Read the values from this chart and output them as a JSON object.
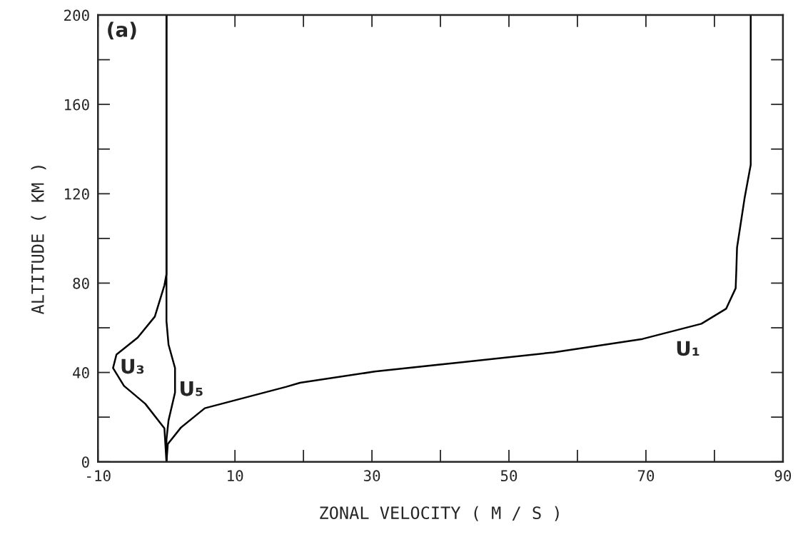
{
  "chart_data": {
    "type": "line",
    "xlabel": "ZONAL VELOCITY ( M / S )",
    "ylabel": "ALTITUDE ( KM )",
    "xlim": [
      -10,
      90
    ],
    "ylim": [
      0,
      200
    ],
    "xticks": [
      -10,
      10,
      30,
      50,
      70,
      90
    ],
    "yticks": [
      0,
      40,
      80,
      120,
      160,
      200
    ],
    "grid": false,
    "legend": false,
    "marker": "none",
    "line_style": "solid",
    "series": [
      {
        "color": "#000000",
        "x": [
          0,
          0.2,
          2.1,
          5.6,
          17.5,
          19.5,
          30.4,
          43.4,
          56.5,
          69.5,
          78.1,
          81.7,
          83.1,
          83.2,
          83.3,
          84.4,
          85.3,
          85.3
        ],
        "values": [
          0,
          8,
          15.3,
          24,
          33.6,
          35.4,
          40.4,
          44.7,
          49,
          55,
          61.8,
          68.5,
          77.7,
          86,
          95.9,
          118,
          133,
          200
        ]
      },
      {
        "color": "#000000",
        "x": [
          0,
          -0.3,
          -3.1,
          -6.2,
          -7.8,
          -7.3,
          -4.2,
          -1.7,
          -0.3,
          0,
          0
        ],
        "values": [
          0,
          15,
          26,
          34,
          42,
          48,
          55.6,
          65,
          79,
          84,
          200
        ]
      },
      {
        "color": "#000000",
        "x": [
          0,
          0,
          0.3,
          1.25,
          1.25,
          0.3,
          0,
          0
        ],
        "values": [
          0,
          10,
          18.5,
          31,
          42,
          52.5,
          63,
          200
        ]
      }
    ],
    "annotations": [
      "(a)",
      "U₃",
      "U₅",
      "U₁"
    ]
  }
}
